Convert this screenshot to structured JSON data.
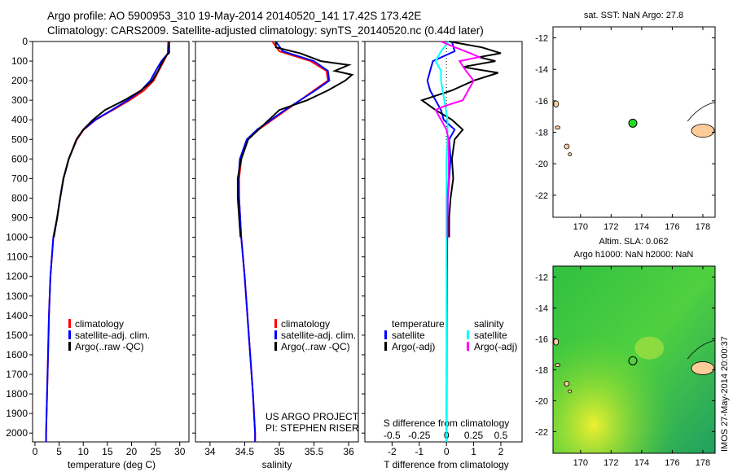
{
  "title_line1": "Argo profile: AO 5900953_310 19-May-2014 20140520_141 17.42S 173.42E",
  "title_line2": "Climatology: CARS2009. Satellite-adjusted climatology: synTS_20140520.nc (0.44d later)",
  "side_label": "IMOS 27-May-2014 20:00:37",
  "colors": {
    "climatology": "#ff0000",
    "satellite": "#0000ff",
    "argo": "#000000",
    "s_satellite": "#00ffff",
    "s_argo": "#ff00ff",
    "land": "#ffcc99",
    "argo_marker": "#22dd22"
  },
  "chart_data": [
    {
      "type": "line",
      "id": "temperature",
      "xlabel": "temperature (deg C)",
      "xlim": [
        -0.5,
        31.9
      ],
      "ylim": [
        0,
        2045
      ],
      "xticks": [
        0,
        5,
        10,
        15,
        20,
        25,
        30
      ],
      "yticks": [
        0,
        100,
        200,
        300,
        400,
        500,
        600,
        700,
        800,
        900,
        1000,
        1100,
        1200,
        1300,
        1400,
        1500,
        1600,
        1700,
        1800,
        1900,
        2000
      ],
      "legend": [
        "climatology",
        "satellite-adj. clim.",
        "Argo(..raw -QC)"
      ],
      "series": [
        {
          "name": "climatology",
          "color": "#ff0000",
          "depth": [
            0,
            60,
            100,
            150,
            200,
            250,
            300,
            350,
            400,
            450,
            500,
            600,
            700,
            800,
            900,
            1000,
            1200,
            1400,
            1600,
            1800,
            2000,
            2045
          ],
          "values": [
            27.6,
            27.5,
            26.7,
            25.6,
            24.6,
            22.6,
            19.6,
            16.1,
            12.6,
            10.1,
            8.7,
            7.0,
            5.9,
            5.2,
            4.6,
            3.8,
            3.2,
            2.9,
            2.7,
            2.5,
            2.3,
            2.3
          ]
        },
        {
          "name": "satellite-adj. clim.",
          "color": "#0000ff",
          "depth": [
            0,
            60,
            100,
            150,
            200,
            250,
            300,
            350,
            400,
            450,
            500,
            600,
            700,
            800,
            900,
            1000,
            1200,
            1400,
            1600,
            1800,
            2000,
            2045
          ],
          "values": [
            27.8,
            27.6,
            26.2,
            25.0,
            23.9,
            22.0,
            19.2,
            15.9,
            12.5,
            10.0,
            8.6,
            7.0,
            5.9,
            5.2,
            4.6,
            3.8,
            3.2,
            2.9,
            2.7,
            2.5,
            2.3,
            2.3
          ]
        },
        {
          "name": "Argo(..raw -QC)",
          "color": "#000000",
          "depth": [
            0,
            58,
            70,
            100,
            150,
            200,
            250,
            300,
            350,
            400,
            450,
            500,
            600,
            700,
            800,
            900,
            1000
          ],
          "values": [
            27.8,
            27.8,
            27.3,
            26.5,
            25.5,
            24.3,
            22.0,
            18.5,
            14.5,
            12.0,
            10.0,
            8.6,
            7.0,
            5.9,
            5.2,
            4.6,
            3.9
          ]
        }
      ]
    },
    {
      "type": "line",
      "id": "salinity",
      "xlabel": "salinity",
      "xlim": [
        33.79,
        36.14
      ],
      "ylim": [
        0,
        2045
      ],
      "xticks": [
        34,
        34.5,
        35,
        35.5,
        36
      ],
      "legend": [
        "climatology",
        "satellite-adj. clim.",
        "Argo(..raw -QC)"
      ],
      "annotation": [
        "US ARGO PROJECT",
        "PI: STEPHEN RISER"
      ],
      "series": [
        {
          "name": "climatology",
          "color": "#ff0000",
          "depth": [
            0,
            50,
            100,
            150,
            200,
            250,
            300,
            350,
            400,
            450,
            500,
            600,
            700,
            800,
            1000,
            1200,
            1400,
            1600,
            1800,
            2000,
            2045
          ],
          "values": [
            34.9,
            35.0,
            35.45,
            35.68,
            35.7,
            35.5,
            35.3,
            35.1,
            34.9,
            34.7,
            34.55,
            34.45,
            34.42,
            34.42,
            34.45,
            34.5,
            34.54,
            34.58,
            34.62,
            34.65,
            34.65
          ]
        },
        {
          "name": "satellite-adj. clim.",
          "color": "#0000ff",
          "depth": [
            0,
            50,
            100,
            150,
            200,
            250,
            300,
            350,
            400,
            450,
            500,
            600,
            700,
            800,
            1000,
            1200,
            1400,
            1600,
            1800,
            2000,
            2045
          ],
          "values": [
            34.95,
            35.05,
            35.5,
            35.7,
            35.72,
            35.52,
            35.3,
            35.08,
            34.88,
            34.68,
            34.53,
            34.43,
            34.41,
            34.42,
            34.45,
            34.5,
            34.54,
            34.58,
            34.62,
            34.65,
            34.65
          ]
        },
        {
          "name": "Argo(..raw -QC)",
          "color": "#000000",
          "depth": [
            0,
            30,
            60,
            100,
            120,
            150,
            170,
            200,
            250,
            300,
            350,
            400,
            450,
            500,
            600,
            700,
            800,
            900,
            1000
          ],
          "values": [
            34.95,
            34.95,
            35.3,
            35.6,
            36.0,
            35.8,
            36.05,
            35.95,
            35.7,
            35.4,
            35.0,
            34.85,
            34.7,
            34.55,
            34.45,
            34.4,
            34.4,
            34.42,
            34.44
          ]
        }
      ]
    },
    {
      "type": "line",
      "id": "difference",
      "xlabel": "T difference from climatology",
      "xlabel2": "S difference from climatology",
      "xlim": [
        -3.0,
        2.78
      ],
      "ylim": [
        0,
        2045
      ],
      "xticks": [
        -2,
        -1,
        0,
        1,
        2
      ],
      "xticks2": [
        "-0.5",
        "-0.25",
        "0",
        "0.25",
        "0.5"
      ],
      "s_scale": 0.25,
      "legend": {
        "temperature": "temperature",
        "salinity": "salinity",
        "t_sat": "satellite",
        "t_argo": "Argo(-adj)",
        "s_sat": "satellite",
        "s_argo": "Argo(-adj)"
      },
      "series": [
        {
          "name": "T satellite",
          "color": "#0000ff",
          "depth": [
            0,
            50,
            100,
            150,
            200,
            250,
            300,
            350,
            400,
            450,
            500,
            600,
            700,
            800,
            900,
            1000,
            1200,
            1500,
            2045
          ],
          "values": [
            0.2,
            0.3,
            -0.5,
            -0.6,
            -0.7,
            -0.6,
            -0.4,
            -0.2,
            -0.1,
            0.3,
            0.1,
            0.15,
            0.1,
            0.05,
            0.05,
            0.03,
            0.02,
            0.01,
            0.0
          ]
        },
        {
          "name": "T Argo(-adj)",
          "color": "#000000",
          "depth": [
            0,
            30,
            60,
            80,
            100,
            130,
            160,
            200,
            250,
            300,
            350,
            400,
            450,
            500,
            600,
            700,
            800,
            900,
            1000
          ],
          "values": [
            0.1,
            1.3,
            2.0,
            1.2,
            1.8,
            0.6,
            1.9,
            1.0,
            0.2,
            -0.9,
            -0.4,
            0.2,
            0.6,
            0.3,
            0.2,
            0.25,
            0.15,
            0.1,
            0.1
          ]
        },
        {
          "name": "S satellite",
          "color": "#00ffff",
          "depth": [
            0,
            50,
            100,
            150,
            200,
            300,
            400,
            500,
            600,
            800,
            1000,
            1500,
            2045
          ],
          "values": [
            0.02,
            -0.05,
            -0.1,
            -0.05,
            -0.05,
            -0.02,
            0.01,
            0.01,
            0.0,
            0.0,
            0.0,
            0.0,
            0.0
          ]
        },
        {
          "name": "S Argo(-adj)",
          "color": "#ff00ff",
          "depth": [
            0,
            30,
            60,
            80,
            100,
            150,
            200,
            250,
            300,
            330,
            350,
            400,
            450,
            500,
            600,
            700,
            800,
            900,
            1000
          ],
          "values": [
            -0.05,
            0.08,
            0.22,
            0.3,
            0.12,
            0.18,
            0.25,
            0.2,
            0.15,
            -0.02,
            -0.1,
            -0.05,
            0.0,
            0.02,
            0.02,
            0.02,
            0.01,
            0.01,
            0.01
          ]
        }
      ]
    },
    {
      "type": "scatter",
      "id": "sst_map",
      "title": "sat. SST: NaN Argo: 27.8",
      "xlim": [
        168.2,
        178.8
      ],
      "ylim": [
        -23.4,
        -11.3
      ],
      "xticks": [
        170,
        172,
        174,
        176,
        178
      ],
      "yticks": [
        -12,
        -14,
        -16,
        -18,
        -20,
        -22
      ],
      "argo_position": {
        "lon": 173.42,
        "lat": -17.42
      }
    },
    {
      "type": "heatmap",
      "id": "sla_map",
      "title_line1": "Altim. SLA: 0.062",
      "title_line2": "Argo h1000: NaN h2000: NaN",
      "xlim": [
        168.2,
        178.8
      ],
      "ylim": [
        -23.4,
        -11.3
      ],
      "xticks": [
        170,
        172,
        174,
        176,
        178
      ],
      "yticks": [
        -12,
        -14,
        -16,
        -18,
        -20,
        -22
      ],
      "argo_position": {
        "lon": 173.42,
        "lat": -17.42
      }
    }
  ]
}
